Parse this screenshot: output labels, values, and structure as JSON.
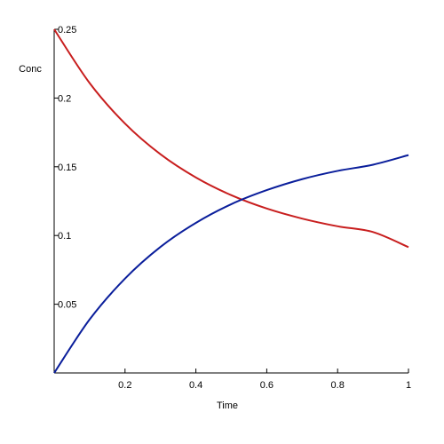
{
  "chart_data": {
    "type": "line",
    "xlabel": "Time",
    "ylabel": "Conc",
    "xlim": [
      0,
      1
    ],
    "ylim": [
      0,
      0.25
    ],
    "grid": false,
    "xticks": [
      0.2,
      0.4,
      0.6,
      0.8,
      1
    ],
    "xtick_labels": [
      "0.2",
      "0.4",
      "0.6",
      "0.8",
      "1"
    ],
    "yticks": [
      0.05,
      0.1,
      0.15,
      0.2,
      0.25
    ],
    "ytick_labels": [
      "0.05",
      "0.1",
      "0.15",
      "0.2",
      "0.25"
    ],
    "series": [
      {
        "color": "#c81e1e",
        "x": [
          0,
          0.1,
          0.2,
          0.3,
          0.4,
          0.5,
          0.6,
          0.7,
          0.8,
          0.9,
          1.0
        ],
        "y": [
          0.25,
          0.2109,
          0.1814,
          0.1591,
          0.1422,
          0.1293,
          0.1196,
          0.1123,
          0.1067,
          0.1025,
          0.0915
        ]
      },
      {
        "color": "#0a1e9b",
        "x": [
          0,
          0.1,
          0.2,
          0.3,
          0.4,
          0.5,
          0.6,
          0.7,
          0.8,
          0.9,
          1.0
        ],
        "y": [
          0,
          0.0389,
          0.0687,
          0.0917,
          0.1092,
          0.1228,
          0.133,
          0.141,
          0.147,
          0.1515,
          0.1585
        ]
      }
    ]
  }
}
